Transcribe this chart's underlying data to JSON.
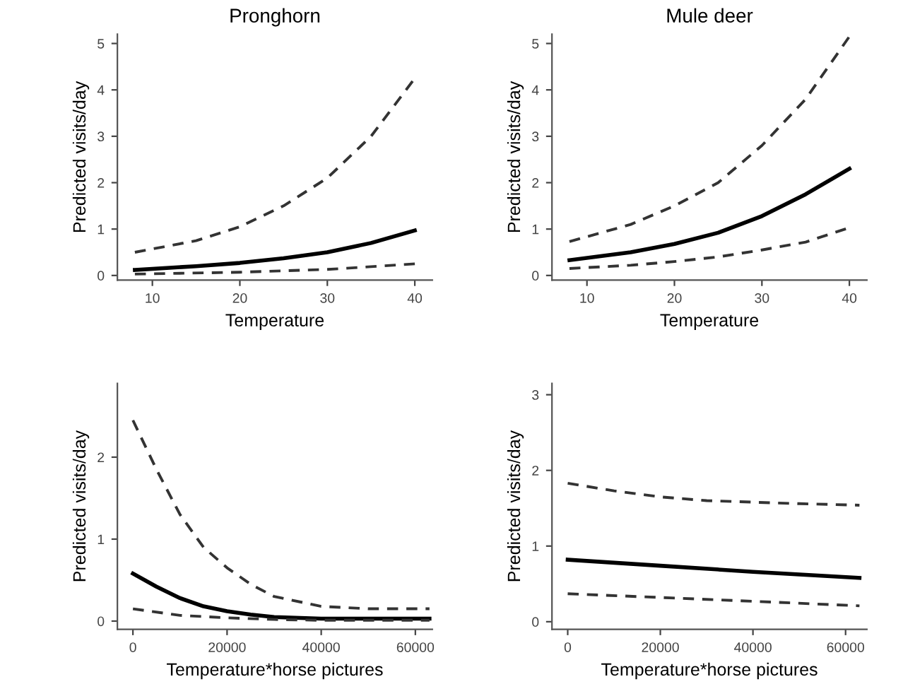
{
  "chart_data": [
    {
      "type": "line",
      "title": "Pronghorn",
      "xlabel": "Temperature",
      "ylabel": "Predicted visits/day",
      "xlim": [
        6,
        42
      ],
      "ylim": [
        -0.1,
        5.2
      ],
      "xticks": [
        10,
        20,
        30,
        40
      ],
      "yticks": [
        0,
        1,
        2,
        3,
        4,
        5
      ],
      "series": [
        {
          "color": "#333333",
          "line_style": "dashed",
          "x": [
            8,
            15,
            20,
            25,
            30,
            35,
            40
          ],
          "values": [
            0.5,
            0.75,
            1.05,
            1.5,
            2.1,
            3.0,
            4.25
          ]
        },
        {
          "color": "#000000",
          "line_style": "solid",
          "x": [
            8,
            15,
            20,
            25,
            30,
            35,
            40
          ],
          "values": [
            0.12,
            0.2,
            0.27,
            0.37,
            0.5,
            0.7,
            0.97
          ]
        },
        {
          "color": "#333333",
          "line_style": "dashed",
          "x": [
            8,
            20,
            30,
            40
          ],
          "values": [
            0.03,
            0.07,
            0.13,
            0.25
          ]
        }
      ]
    },
    {
      "type": "line",
      "title": "Mule deer",
      "xlabel": "Temperature",
      "ylabel": "Predicted visits/day",
      "xlim": [
        6,
        42
      ],
      "ylim": [
        -0.1,
        5.2
      ],
      "xticks": [
        10,
        20,
        30,
        40
      ],
      "yticks": [
        0,
        1,
        2,
        3,
        4,
        5
      ],
      "series": [
        {
          "color": "#333333",
          "line_style": "dashed",
          "x": [
            8,
            15,
            20,
            25,
            30,
            35,
            40
          ],
          "values": [
            0.73,
            1.1,
            1.5,
            2.0,
            2.8,
            3.8,
            5.15
          ]
        },
        {
          "color": "#000000",
          "line_style": "solid",
          "x": [
            8,
            15,
            20,
            25,
            30,
            35,
            40
          ],
          "values": [
            0.33,
            0.5,
            0.68,
            0.92,
            1.28,
            1.75,
            2.3
          ]
        },
        {
          "color": "#333333",
          "line_style": "dashed",
          "x": [
            8,
            15,
            20,
            25,
            30,
            35,
            40
          ],
          "values": [
            0.15,
            0.22,
            0.3,
            0.4,
            0.55,
            0.72,
            1.03
          ]
        }
      ]
    },
    {
      "type": "line",
      "xlabel": "Temperature*horse pictures",
      "ylabel": "Predicted visits/day",
      "xlim": [
        -3300,
        63600
      ],
      "ylim": [
        -0.1,
        2.9
      ],
      "xticks": [
        0,
        20000,
        40000,
        60000
      ],
      "yticks": [
        0,
        1,
        2
      ],
      "series": [
        {
          "color": "#333333",
          "line_style": "dashed",
          "x": [
            0,
            5000,
            10000,
            15000,
            20000,
            25000,
            30000,
            40000,
            50000,
            63000
          ],
          "values": [
            2.45,
            1.85,
            1.3,
            0.9,
            0.65,
            0.45,
            0.3,
            0.18,
            0.15,
            0.15
          ]
        },
        {
          "color": "#000000",
          "line_style": "solid",
          "x": [
            0,
            5000,
            10000,
            15000,
            20000,
            25000,
            30000,
            40000,
            63000
          ],
          "values": [
            0.58,
            0.42,
            0.28,
            0.18,
            0.12,
            0.08,
            0.05,
            0.03,
            0.03
          ]
        },
        {
          "color": "#333333",
          "line_style": "dashed",
          "x": [
            0,
            10000,
            20000,
            30000,
            40000,
            63000
          ],
          "values": [
            0.15,
            0.07,
            0.04,
            0.02,
            0.01,
            0.01
          ]
        }
      ]
    },
    {
      "type": "line",
      "xlabel": "Temperature*horse pictures",
      "ylabel": "Predicted visits/day",
      "xlim": [
        -3400,
        64600
      ],
      "ylim": [
        -0.1,
        3.15
      ],
      "xticks": [
        0,
        20000,
        40000,
        60000
      ],
      "yticks": [
        0,
        1,
        2,
        3
      ],
      "series": [
        {
          "color": "#333333",
          "line_style": "dashed",
          "x": [
            0,
            10000,
            20000,
            30000,
            40000,
            50000,
            63000
          ],
          "values": [
            1.83,
            1.73,
            1.65,
            1.6,
            1.58,
            1.56,
            1.54
          ]
        },
        {
          "color": "#000000",
          "line_style": "solid",
          "x": [
            0,
            20000,
            40000,
            63000
          ],
          "values": [
            0.82,
            0.74,
            0.66,
            0.58
          ]
        },
        {
          "color": "#333333",
          "line_style": "dashed",
          "x": [
            0,
            20000,
            40000,
            63000
          ],
          "values": [
            0.37,
            0.32,
            0.27,
            0.21
          ]
        }
      ]
    }
  ]
}
